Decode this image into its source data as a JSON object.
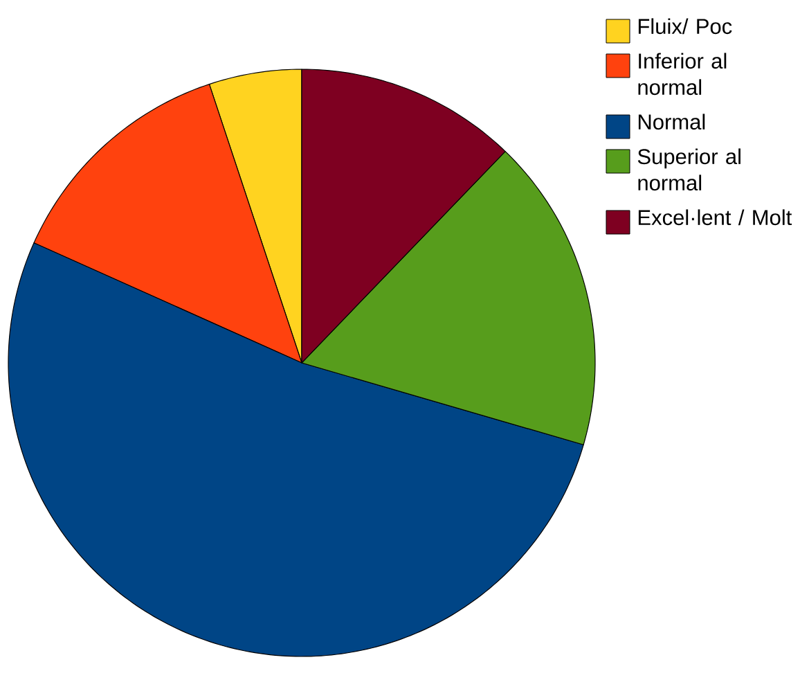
{
  "chart_data": {
    "type": "pie",
    "categories": [
      "Fluix/ Poc",
      "Inferior al normal",
      "Normal",
      "Superior al normal",
      "Excel·lent / Molt"
    ],
    "values": [
      5.1,
      13.2,
      52.2,
      17.3,
      12.2
    ],
    "colors": [
      "#ffd320",
      "#ff420e",
      "#004586",
      "#579d1c",
      "#7e0021"
    ],
    "legend": "top right"
  }
}
